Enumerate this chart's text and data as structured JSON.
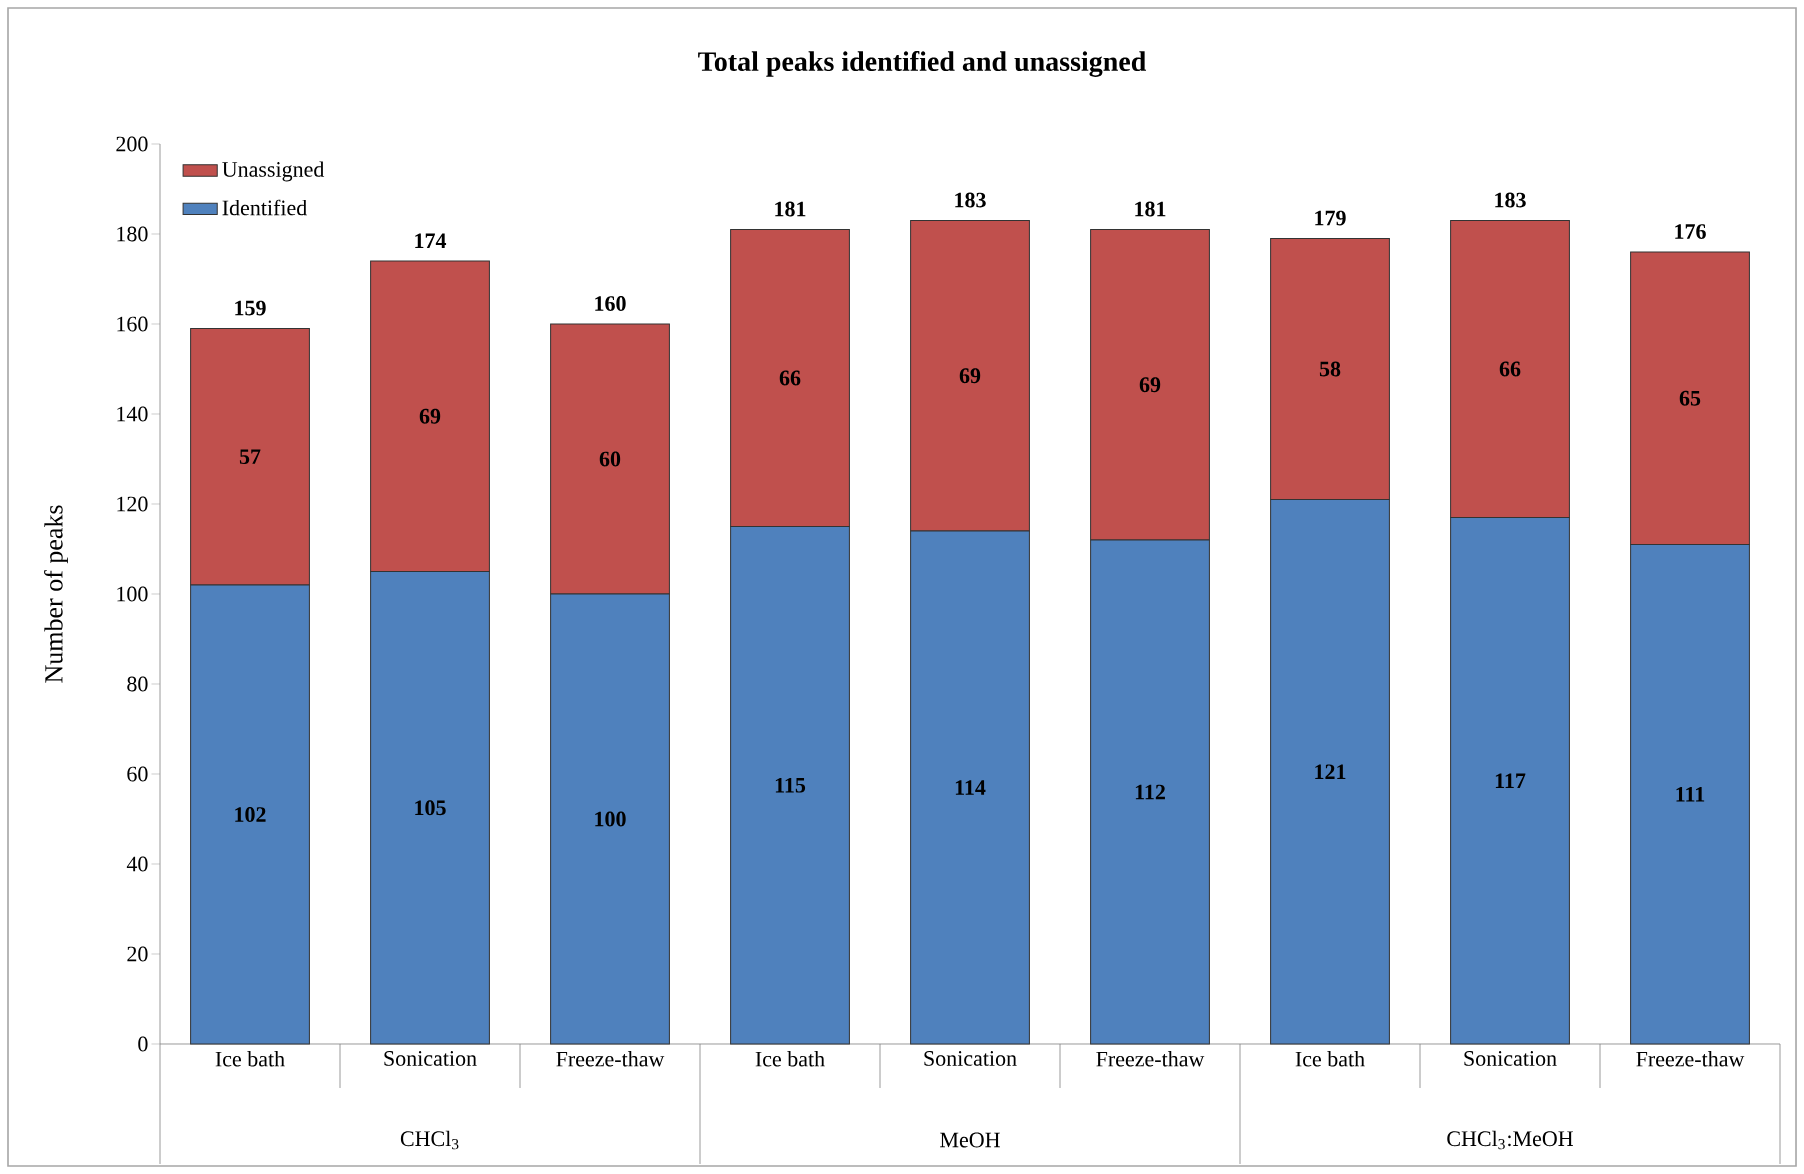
{
  "chart_data": {
    "type": "bar",
    "stacked": true,
    "title": "**Total peaks identified and unassigned**",
    "ylabel": "Number of peaks",
    "categories": [
      "Ice bath",
      "Sonication",
      "Freeze-thaw",
      "Ice bath",
      "Sonication",
      "Freeze-thaw",
      "Ice bath",
      "Sonication",
      "Freeze-thaw"
    ],
    "series": [
      {
        "name": "Identified",
        "color": "#4f81bd",
        "values": [
          102,
          105,
          100,
          115,
          114,
          112,
          121,
          117,
          111
        ]
      },
      {
        "name": "Unassigned",
        "color": "#c0504d",
        "values": [
          57,
          69,
          60,
          66,
          69,
          69,
          58,
          66,
          65
        ]
      }
    ],
    "totals": [
      "159",
      "174",
      "160",
      "181",
      "183",
      "181",
      "179",
      "183",
      "176"
    ],
    "data_labels": true,
    "annotations": [
      "CHCl$_{3}$",
      "MeOH",
      "CHCl$_{3}$:MeOH"
    ],
    "ylim": [
      0,
      200
    ],
    "yticks": [
      0,
      20,
      40,
      60,
      80,
      100,
      120,
      140,
      160,
      180,
      200
    ],
    "grid": false,
    "legend": "top left"
  }
}
